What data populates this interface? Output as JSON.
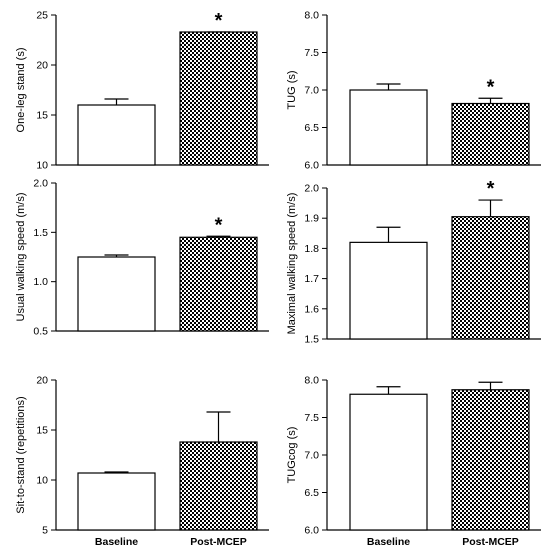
{
  "chart_data": [
    {
      "type": "bar",
      "categories": [
        "Baseline",
        "Post-MCEP"
      ],
      "values": [
        16.0,
        23.3
      ],
      "errors": [
        0.6,
        0.0
      ],
      "significant": [
        false,
        true
      ],
      "ylabel": "One-leg stand (s)",
      "ylim": [
        10,
        25
      ],
      "yticks": [
        "10",
        "15",
        "20",
        "25"
      ],
      "show_xlabels": false
    },
    {
      "type": "bar",
      "categories": [
        "Baseline",
        "Post-MCEP"
      ],
      "values": [
        7.0,
        6.82
      ],
      "errors": [
        0.08,
        0.07
      ],
      "significant": [
        false,
        true
      ],
      "ylabel": "TUG (s)",
      "ylim": [
        6.0,
        8.0
      ],
      "yticks": [
        "6.0",
        "6.5",
        "7.0",
        "7.5",
        "8.0"
      ],
      "show_xlabels": false
    },
    {
      "type": "bar",
      "categories": [
        "Baseline",
        "Post-MCEP"
      ],
      "values": [
        1.25,
        1.45
      ],
      "errors": [
        0.02,
        0.01
      ],
      "significant": [
        false,
        true
      ],
      "ylabel": "Usual walking speed (m/s)",
      "ylim": [
        0.5,
        2.0
      ],
      "yticks": [
        "0.5",
        "1.0",
        "1.5",
        "2.0"
      ],
      "show_xlabels": false
    },
    {
      "type": "bar",
      "categories": [
        "Baseline",
        "Post-MCEP"
      ],
      "values": [
        1.82,
        1.905
      ],
      "errors": [
        0.05,
        0.055
      ],
      "significant": [
        false,
        true
      ],
      "ylabel": "Maximal walking speed (m/s)",
      "ylim": [
        1.5,
        2.0
      ],
      "yticks": [
        "1.5",
        "1.6",
        "1.7",
        "1.8",
        "1.9",
        "2.0"
      ],
      "show_xlabels": false
    },
    {
      "type": "bar",
      "categories": [
        "Baseline",
        "Post-MCEP"
      ],
      "values": [
        10.7,
        13.8
      ],
      "errors": [
        0.1,
        3.0
      ],
      "significant": [
        false,
        false
      ],
      "ylabel": "Sit-to-stand (repetitions)",
      "ylim": [
        5,
        20
      ],
      "yticks": [
        "5",
        "10",
        "15",
        "20"
      ],
      "show_xlabels": true
    },
    {
      "type": "bar",
      "categories": [
        "Baseline",
        "Post-MCEP"
      ],
      "values": [
        7.81,
        7.87
      ],
      "errors": [
        0.1,
        0.1
      ],
      "significant": [
        false,
        false
      ],
      "ylabel": "TUGcog (s)",
      "ylim": [
        6.0,
        8.0
      ],
      "yticks": [
        "6.0",
        "6.5",
        "7.0",
        "7.5",
        "8.0"
      ],
      "show_xlabels": true
    }
  ],
  "significance_marker": "*",
  "colors": {
    "bar_baseline": "#ffffff",
    "bar_post": "checkered",
    "axis": "#000000"
  }
}
